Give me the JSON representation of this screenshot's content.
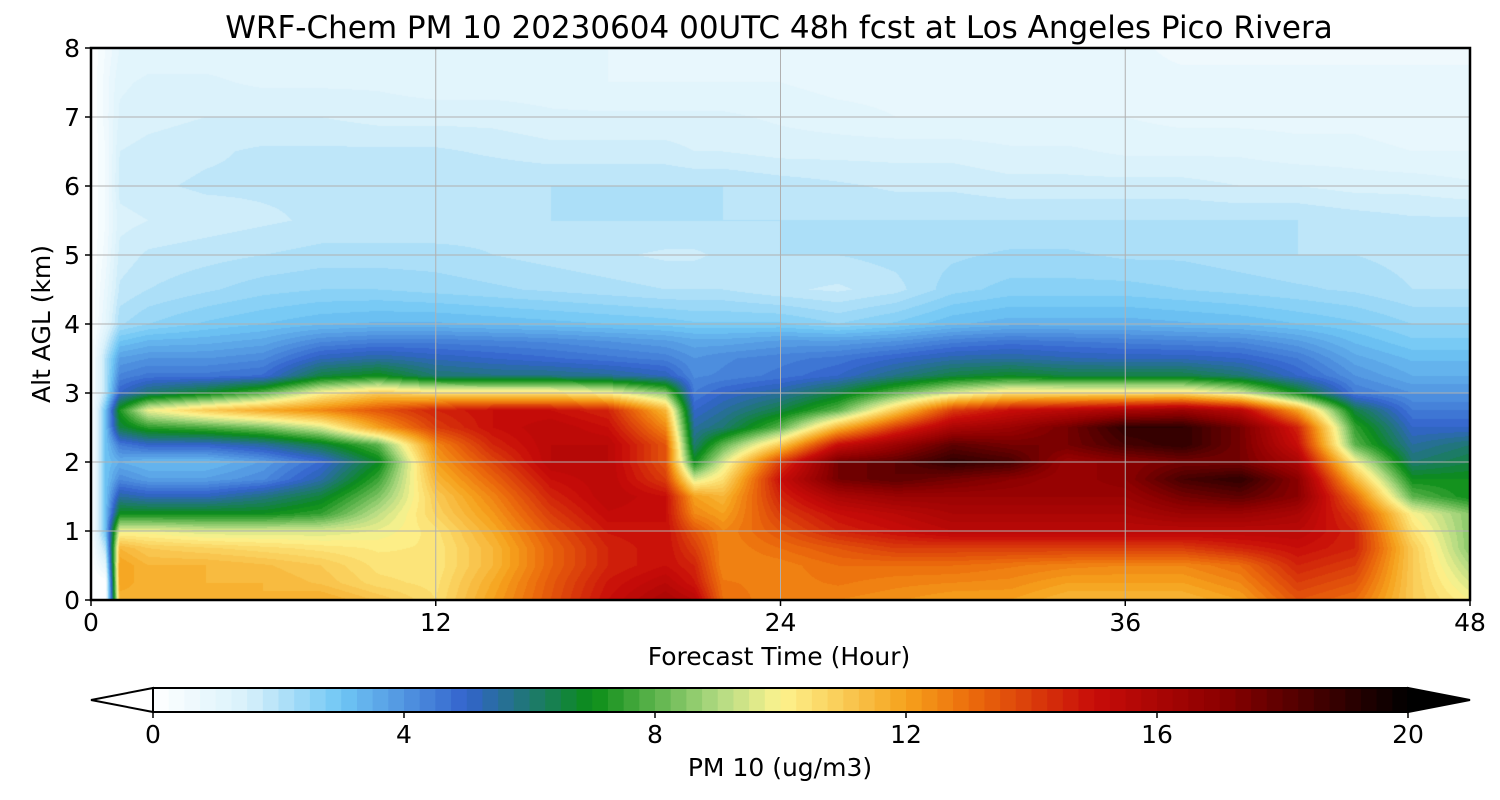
{
  "chart_data": {
    "type": "heatmap",
    "title": "WRF-Chem PM 10  20230604 00UTC 48h fcst at Los Angeles Pico Rivera",
    "xlabel": "Forecast Time (Hour)",
    "ylabel": "Alt AGL (km)",
    "xlim": [
      0,
      48
    ],
    "ylim": [
      0,
      8
    ],
    "x_ticks": [
      0,
      12,
      24,
      36,
      48
    ],
    "y_ticks": [
      0,
      1,
      2,
      3,
      4,
      5,
      6,
      7,
      8
    ],
    "grid": true,
    "colorbar": {
      "label": "PM 10  (ug/m3)",
      "range": [
        0,
        20
      ],
      "ticks": [
        0,
        4,
        8,
        12,
        16,
        20
      ],
      "extend": "both",
      "placement": "bottom",
      "stops": [
        {
          "v": 0,
          "color": "#ffffff"
        },
        {
          "v": 1.5,
          "color": "#d8f1fb"
        },
        {
          "v": 3,
          "color": "#6fc6f4"
        },
        {
          "v": 5,
          "color": "#3363cc"
        },
        {
          "v": 7,
          "color": "#0a8d17"
        },
        {
          "v": 9,
          "color": "#b0da82"
        },
        {
          "v": 10,
          "color": "#fdf38e"
        },
        {
          "v": 12,
          "color": "#f6a21c"
        },
        {
          "v": 13,
          "color": "#ec6d0c"
        },
        {
          "v": 15,
          "color": "#c80c09"
        },
        {
          "v": 17,
          "color": "#8c0000"
        },
        {
          "v": 20,
          "color": "#000000"
        }
      ]
    },
    "times": [
      0,
      0.5,
      1,
      2,
      4,
      6,
      8,
      10,
      12,
      14,
      16,
      18,
      20,
      21,
      22,
      24,
      26,
      28,
      30,
      32,
      34,
      36,
      38,
      40,
      42,
      44,
      46,
      48
    ],
    "heights": [
      0,
      0.25,
      0.5,
      0.75,
      1,
      1.25,
      1.5,
      1.75,
      2,
      2.25,
      2.5,
      2.75,
      3,
      3.25,
      3.5,
      3.75,
      4,
      4.5,
      5,
      5.5,
      6,
      6.5,
      7,
      7.5,
      8
    ],
    "values": [
      [
        0,
        0,
        11.5,
        11.5,
        11.5,
        11.5,
        11.8,
        11.2,
        10.5,
        12,
        13.5,
        15,
        16,
        15.5,
        13,
        12.5,
        12.5,
        12.3,
        12,
        12,
        11.5,
        11.5,
        11.5,
        12,
        13.5,
        13,
        11,
        10
      ],
      [
        0,
        0,
        12,
        11.5,
        11.5,
        11.5,
        11.2,
        10.6,
        10.4,
        11.8,
        13.4,
        14.8,
        15.5,
        14.8,
        12.8,
        12.6,
        12.8,
        12.6,
        12.5,
        12.4,
        12,
        12,
        12,
        12.5,
        14,
        13.5,
        11,
        9.5
      ],
      [
        0,
        1,
        12,
        11.5,
        11.5,
        11.3,
        11,
        10.4,
        10.3,
        11.5,
        13.2,
        14.5,
        15,
        14.5,
        12.5,
        12.6,
        13,
        13,
        13,
        12.8,
        12.6,
        12.5,
        12.5,
        13,
        14.5,
        14,
        11,
        9
      ],
      [
        0,
        2,
        11.5,
        11,
        10.8,
        10.6,
        10.4,
        10.2,
        10.3,
        11.5,
        13.2,
        14.5,
        15,
        14,
        12.5,
        13,
        13.5,
        14,
        14,
        14,
        14,
        14,
        14,
        14.5,
        15,
        14.5,
        11,
        8.5
      ],
      [
        0,
        3,
        9.8,
        9.8,
        9.5,
        9.5,
        9.5,
        9.8,
        10.4,
        11.8,
        13.5,
        14.8,
        15,
        13.5,
        12.5,
        13.5,
        14.5,
        15,
        15.5,
        15.5,
        15.5,
        15.5,
        15.5,
        15.5,
        15.5,
        14.5,
        10.5,
        8.5
      ],
      [
        0,
        3,
        7,
        7,
        7,
        7,
        7.5,
        9.2,
        10.8,
        12.2,
        14,
        15.2,
        15,
        12.5,
        12,
        14,
        15,
        15.5,
        16,
        16,
        16,
        16,
        16.5,
        16.5,
        16,
        14,
        10,
        8.5
      ],
      [
        0,
        3,
        5.5,
        5.2,
        5.2,
        5.8,
        6.6,
        8.4,
        11,
        12.6,
        14.5,
        15.5,
        15,
        12,
        11.5,
        14.5,
        16,
        16.5,
        16.5,
        16.5,
        16.5,
        16.5,
        17.5,
        18,
        17,
        13,
        8,
        7
      ],
      [
        0,
        3,
        4.2,
        3.8,
        3.8,
        4.2,
        5.4,
        7.6,
        11.5,
        13.2,
        15,
        15.5,
        14,
        9.5,
        10.5,
        15,
        17.5,
        18,
        17.5,
        17,
        16.5,
        17,
        18.5,
        19,
        17,
        11.5,
        7,
        7
      ],
      [
        0,
        3,
        3.5,
        3.2,
        3.2,
        3.8,
        4.8,
        6.8,
        12,
        13.8,
        15.5,
        15.5,
        13.5,
        7,
        9.5,
        14,
        17.5,
        18,
        19,
        18.5,
        16.5,
        17,
        17.5,
        17.5,
        16,
        10,
        6,
        6.5
      ],
      [
        0,
        3,
        4.5,
        5,
        5,
        5.5,
        6.5,
        8,
        12.5,
        14.5,
        15.5,
        15.5,
        13.5,
        6,
        8,
        11,
        15,
        16.5,
        18,
        17.5,
        17.5,
        18.5,
        19,
        17.5,
        15,
        8,
        5.5,
        6
      ],
      [
        0,
        3,
        6.5,
        7.4,
        7.8,
        8.4,
        9.5,
        12,
        14,
        15,
        15.5,
        15,
        12.5,
        5.5,
        6,
        8,
        11.5,
        14,
        16,
        16.5,
        17.5,
        19,
        19,
        17.5,
        14.5,
        7.5,
        5,
        5
      ],
      [
        0,
        3,
        7.2,
        9.8,
        11,
        11.8,
        12.5,
        13.5,
        14.5,
        15,
        15,
        14.5,
        11.5,
        5,
        5.5,
        6.5,
        8,
        11,
        14,
        15,
        15.5,
        16,
        16.5,
        15.5,
        12,
        6.5,
        4.5,
        4.5
      ],
      [
        0,
        2,
        5,
        6,
        6.8,
        8,
        10,
        11,
        10.5,
        10.5,
        10.5,
        10,
        8.5,
        4.5,
        5,
        5.5,
        6.5,
        8,
        9.5,
        10.5,
        10.5,
        10.5,
        10.5,
        9.5,
        7,
        4.5,
        4,
        4
      ],
      [
        0,
        2,
        4.3,
        4.6,
        4.6,
        4.8,
        6.5,
        7,
        6,
        5.8,
        5.8,
        5.6,
        5.2,
        4.2,
        4.3,
        4.6,
        5,
        5.8,
        6.5,
        6.8,
        6.5,
        6.5,
        6.5,
        6,
        5,
        4,
        3.5,
        3.5
      ],
      [
        0,
        2,
        3.8,
        4,
        4,
        4.2,
        5.2,
        5.5,
        5.2,
        5,
        4.8,
        4.6,
        4.4,
        4,
        4.2,
        4.4,
        4.6,
        5,
        5.4,
        5.5,
        5.3,
        5.2,
        5.2,
        5,
        4.5,
        3.6,
        3.2,
        3.2
      ],
      [
        0,
        1.5,
        3,
        3.3,
        3.4,
        3.6,
        4.2,
        4.4,
        4.4,
        4.3,
        4.2,
        4,
        3.8,
        3.6,
        3.6,
        3.8,
        3.8,
        4,
        4.4,
        4.6,
        4.5,
        4.4,
        4.3,
        4.2,
        3.8,
        3.2,
        2.8,
        2.8
      ],
      [
        0,
        1,
        2.2,
        2.5,
        2.8,
        3,
        3.2,
        3.3,
        3.3,
        3.2,
        3.1,
        3,
        2.9,
        2.8,
        2.8,
        2.8,
        2.5,
        2.8,
        3.2,
        3.4,
        3.4,
        3.4,
        3.3,
        3.2,
        3,
        2.8,
        2.5,
        2.5
      ],
      [
        0,
        0.8,
        1.8,
        2,
        2.2,
        2.4,
        2.5,
        2.5,
        2.4,
        2.3,
        2.2,
        2.1,
        2,
        2,
        2,
        1.8,
        1.7,
        1.9,
        2.4,
        2.6,
        2.6,
        2.6,
        2.5,
        2.4,
        2.3,
        2.2,
        2,
        2
      ],
      [
        0,
        0.6,
        1.6,
        1.8,
        1.9,
        2,
        2.1,
        2.1,
        2.1,
        2,
        1.9,
        1.8,
        1.7,
        1.7,
        1.8,
        2,
        2,
        2.1,
        2.2,
        2.3,
        2.3,
        2.2,
        2.2,
        2.1,
        2,
        2,
        1.9,
        1.9
      ],
      [
        0,
        0.5,
        1.4,
        1.5,
        1.6,
        1.7,
        1.8,
        1.8,
        1.8,
        1.9,
        2,
        2,
        2,
        2,
        2,
        2,
        2,
        2,
        2,
        2,
        2,
        2,
        2,
        2,
        2,
        1.9,
        1.8,
        1.8
      ],
      [
        0,
        0.5,
        1.6,
        1.7,
        1.8,
        1.8,
        1.8,
        1.9,
        2,
        2,
        2,
        2,
        2,
        2,
        2,
        1.9,
        1.8,
        1.7,
        1.7,
        1.6,
        1.6,
        1.6,
        1.6,
        1.5,
        1.5,
        1.4,
        1.4,
        1.3
      ],
      [
        0,
        0.5,
        1.5,
        1.6,
        1.7,
        1.8,
        1.8,
        1.8,
        1.8,
        1.7,
        1.6,
        1.6,
        1.6,
        1.5,
        1.5,
        1.4,
        1.4,
        1.4,
        1.4,
        1.3,
        1.3,
        1.2,
        1.2,
        1.2,
        1.1,
        1.1,
        1,
        1
      ],
      [
        0,
        0.6,
        1.3,
        1.4,
        1.5,
        1.5,
        1.5,
        1.4,
        1.4,
        1.4,
        1.3,
        1.3,
        1.3,
        1.3,
        1.3,
        1.2,
        1.1,
        1,
        1,
        1,
        1,
        1,
        0.9,
        0.9,
        0.9,
        0.9,
        0.8,
        0.8
      ],
      [
        0,
        0.6,
        1.2,
        1.3,
        1.3,
        1.2,
        1.2,
        1.2,
        1.1,
        1.1,
        1.1,
        1,
        1,
        1,
        1,
        1,
        0.9,
        0.9,
        0.8,
        0.8,
        0.8,
        0.8,
        0.8,
        0.8,
        0.8,
        0.8,
        0.8,
        0.8
      ],
      [
        0,
        0.5,
        1,
        1.1,
        1.1,
        1.1,
        1,
        1,
        1,
        1,
        1,
        1,
        0.9,
        0.9,
        0.9,
        0.9,
        0.8,
        0.8,
        0.8,
        0.8,
        0.8,
        0.8,
        0.7,
        0.7,
        0.7,
        0.7,
        0.7,
        0.7
      ]
    ]
  }
}
